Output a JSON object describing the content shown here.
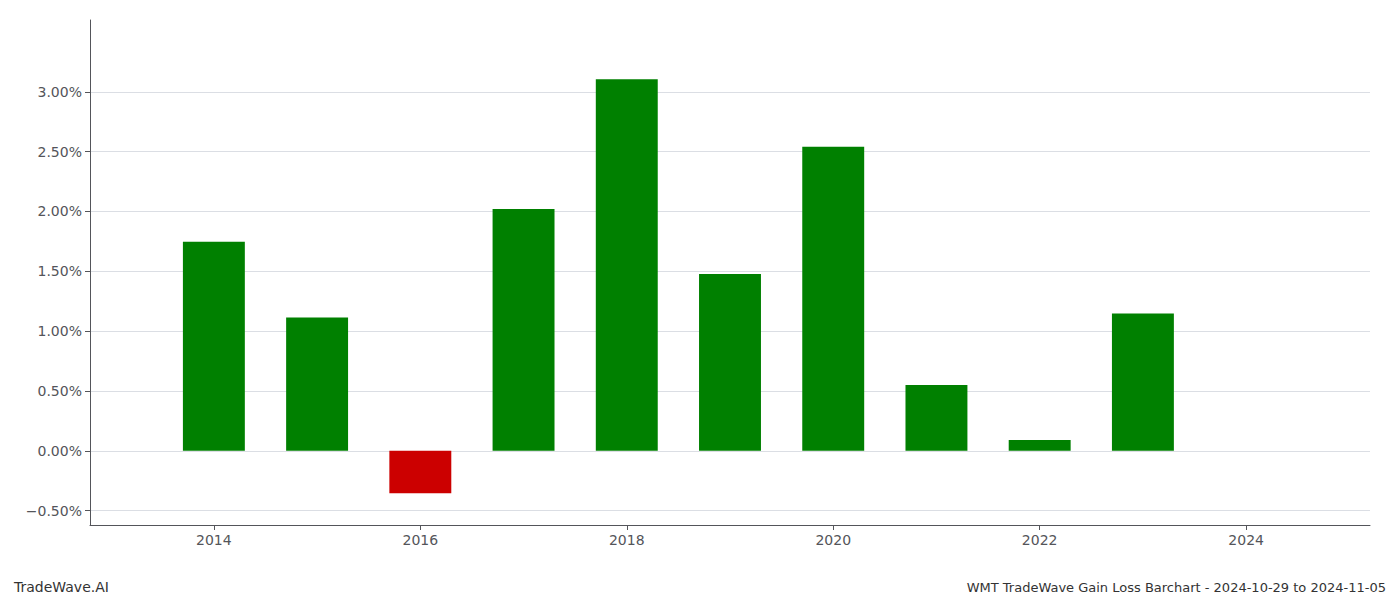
{
  "chart_data": {
    "type": "bar",
    "x": [
      2014,
      2015,
      2016,
      2017,
      2018,
      2019,
      2020,
      2021,
      2022,
      2023
    ],
    "values": [
      0.01748,
      0.01115,
      -0.00355,
      0.0202,
      0.03105,
      0.01478,
      0.0254,
      0.0055,
      0.0009,
      0.01148
    ],
    "colors": [
      "#008000",
      "#008000",
      "#cc0000",
      "#008000",
      "#008000",
      "#008000",
      "#008000",
      "#008000",
      "#008000",
      "#008000"
    ],
    "xlim": [
      2012.8,
      2025.2
    ],
    "xticks": [
      2014,
      2016,
      2018,
      2020,
      2022,
      2024
    ],
    "ylim": [
      -0.0062,
      0.036
    ],
    "yticks": [
      {
        "value": -0.005,
        "label": "−0.50%"
      },
      {
        "value": 0,
        "label": "0.00%"
      },
      {
        "value": 0.005,
        "label": "0.50%"
      },
      {
        "value": 0.01,
        "label": "1.00%"
      },
      {
        "value": 0.015,
        "label": "1.50%"
      },
      {
        "value": 0.02,
        "label": "2.00%"
      },
      {
        "value": 0.025,
        "label": "2.50%"
      },
      {
        "value": 0.03,
        "label": "3.00%"
      }
    ],
    "grid": true,
    "annotations": [
      "TradeWave.AI",
      "WMT TradeWave Gain Loss Barchart - 2024-10-29 to 2024-11-05"
    ]
  }
}
